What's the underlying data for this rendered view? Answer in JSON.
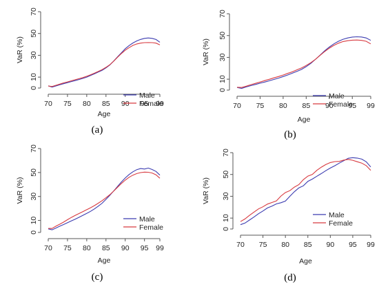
{
  "colors": {
    "male": "#3b3bb0",
    "female": "#d8393f",
    "axis": "#555555"
  },
  "chart_data": [
    {
      "type": "line",
      "panel": "(a)",
      "xlabel": "Age",
      "ylabel": "VaR (%)",
      "xlim": [
        70,
        99
      ],
      "ylim": [
        0,
        70
      ],
      "xticks": [
        70,
        75,
        80,
        85,
        90,
        95,
        99
      ],
      "yticks": [
        0,
        10,
        30,
        50,
        70
      ],
      "x": [
        70,
        71,
        72,
        73,
        74,
        75,
        76,
        77,
        78,
        79,
        80,
        81,
        82,
        83,
        84,
        85,
        86,
        87,
        88,
        89,
        90,
        91,
        92,
        93,
        94,
        95,
        96,
        97,
        98,
        99
      ],
      "series": [
        {
          "name": "Male",
          "values": [
            2,
            0.8,
            1.9,
            3,
            4,
            4.9,
            5.9,
            6.8,
            7.8,
            8.8,
            10,
            11.5,
            13,
            14.6,
            16.2,
            18.5,
            21.2,
            24.8,
            28.6,
            32.2,
            36,
            38.9,
            41.3,
            43.2,
            44.6,
            45.5,
            45.9,
            45.5,
            44.5,
            42
          ]
        },
        {
          "name": "Female",
          "values": [
            1.8,
            1.4,
            2.5,
            3.6,
            4.7,
            5.6,
            6.6,
            7.6,
            8.6,
            9.6,
            10.8,
            12.2,
            13.6,
            15.2,
            16.9,
            19,
            21.4,
            24.6,
            28.2,
            31.6,
            34.6,
            37,
            39.1,
            40.4,
            41.2,
            41.6,
            41.7,
            41.6,
            41.2,
            39.6
          ]
        }
      ],
      "legend": "right"
    },
    {
      "type": "line",
      "panel": "(b)",
      "xlabel": "Age",
      "ylabel": "VaR (%)",
      "xlim": [
        70,
        99
      ],
      "ylim": [
        0,
        70
      ],
      "xticks": [
        70,
        75,
        80,
        85,
        90,
        95,
        99
      ],
      "yticks": [
        0,
        10,
        30,
        50,
        70
      ],
      "x": [
        70,
        71,
        72,
        73,
        74,
        75,
        76,
        77,
        78,
        79,
        80,
        81,
        82,
        83,
        84,
        85,
        86,
        87,
        88,
        89,
        90,
        91,
        92,
        93,
        94,
        95,
        96,
        97,
        98,
        99
      ],
      "series": [
        {
          "name": "Male",
          "values": [
            2.4,
            1.6,
            2.9,
            4.1,
            5.2,
            6.3,
            7.4,
            8.5,
            9.8,
            11,
            12.4,
            13.9,
            15.5,
            17.2,
            19,
            21.5,
            24.5,
            28.1,
            32,
            36,
            39.4,
            42.4,
            44.8,
            46.6,
            47.8,
            48.6,
            48.9,
            48.7,
            47.8,
            45.6
          ]
        },
        {
          "name": "Female",
          "values": [
            2.6,
            2.4,
            3.6,
            5,
            6.2,
            7.4,
            8.7,
            9.9,
            11.2,
            12.4,
            13.8,
            15.3,
            16.8,
            18.6,
            20.4,
            22.6,
            25.1,
            28.2,
            31.8,
            35.3,
            38.4,
            41,
            43,
            44.5,
            45.3,
            45.8,
            45.9,
            45.6,
            44.8,
            42.4
          ]
        }
      ],
      "legend": "right"
    },
    {
      "type": "line",
      "panel": "(c)",
      "xlabel": "Age",
      "ylabel": "VaR (%)",
      "xlim": [
        70,
        99
      ],
      "ylim": [
        0,
        70
      ],
      "xticks": [
        70,
        75,
        80,
        85,
        90,
        95,
        99
      ],
      "yticks": [
        0,
        10,
        30,
        50,
        70
      ],
      "x": [
        70,
        71,
        72,
        73,
        74,
        75,
        76,
        77,
        78,
        79,
        80,
        81,
        82,
        83,
        84,
        85,
        86,
        87,
        88,
        89,
        90,
        91,
        92,
        93,
        94,
        95,
        96,
        97,
        98,
        99
      ],
      "series": [
        {
          "name": "Male",
          "values": [
            3,
            2.2,
            3.7,
            5.2,
            6.6,
            8.1,
            9.6,
            11,
            12.6,
            14.3,
            15.9,
            17.6,
            19.6,
            21.9,
            24.4,
            27.6,
            31,
            34.6,
            38.4,
            42,
            45.4,
            48.3,
            50.6,
            52.4,
            53.3,
            52.9,
            53.7,
            52.5,
            50.9,
            47.8
          ]
        },
        {
          "name": "Female",
          "values": [
            3.3,
            3.3,
            5.2,
            6.9,
            8.6,
            10.6,
            12.5,
            14.2,
            15.8,
            17.4,
            19,
            20.6,
            22.4,
            24.4,
            26.5,
            28.9,
            31.5,
            34.5,
            37.7,
            40.8,
            43.6,
            46,
            47.8,
            49.1,
            49.9,
            50.3,
            50.2,
            49.6,
            48.1,
            45.2
          ]
        }
      ],
      "legend": "right"
    },
    {
      "type": "line",
      "panel": "(d)",
      "xlabel": "Age",
      "ylabel": "VaR (%)",
      "xlim": [
        70,
        99
      ],
      "ylim": [
        0,
        70
      ],
      "xticks": [
        70,
        75,
        80,
        85,
        90,
        95,
        99
      ],
      "yticks": [
        0,
        10,
        30,
        50,
        70
      ],
      "x": [
        70,
        71,
        72,
        73,
        74,
        75,
        76,
        77,
        78,
        79,
        80,
        81,
        82,
        83,
        84,
        85,
        86,
        87,
        88,
        89,
        90,
        91,
        92,
        93,
        94,
        95,
        96,
        97,
        98,
        99
      ],
      "series": [
        {
          "name": "Male",
          "values": [
            4,
            5.4,
            8.2,
            11,
            14,
            16.5,
            19.3,
            21,
            23,
            24.1,
            25.6,
            30,
            34.2,
            37.7,
            39.6,
            43.7,
            45.8,
            48.4,
            50.8,
            53.5,
            55.9,
            58,
            60.4,
            62.6,
            64.8,
            65.4,
            65,
            64.1,
            61.6,
            56.9
          ]
        },
        {
          "name": "Female",
          "values": [
            6.8,
            9.2,
            12.5,
            15.5,
            18.4,
            20.4,
            22.8,
            24.3,
            25.8,
            30.2,
            33.4,
            35.2,
            38.4,
            40.7,
            45.2,
            48.5,
            50,
            53.8,
            56.7,
            59.1,
            60.9,
            61.8,
            62,
            63.2,
            63.8,
            63,
            61.7,
            60.4,
            58.1,
            53.7
          ]
        }
      ],
      "legend": "right"
    }
  ]
}
